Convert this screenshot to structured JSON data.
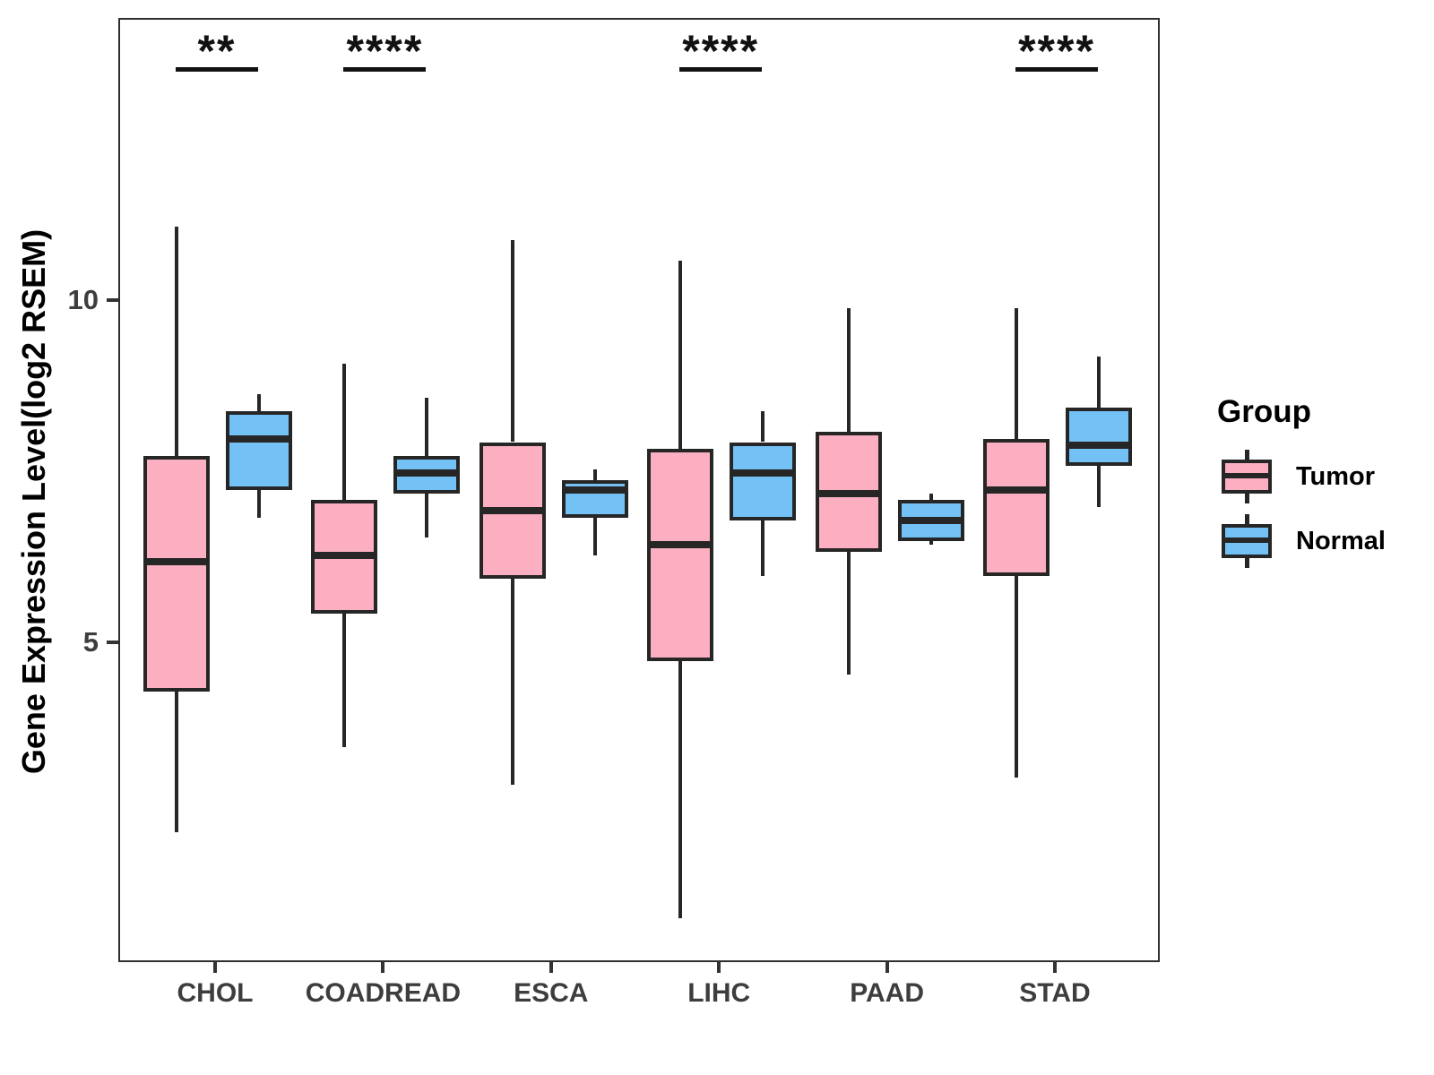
{
  "chart_data": {
    "type": "grouped_boxplot",
    "title": "",
    "xlabel": "",
    "ylabel": "Gene Expression Level(log2 RSEM)",
    "categories": [
      "CHOL",
      "COADREAD",
      "ESCA",
      "LIHC",
      "PAAD",
      "STAD"
    ],
    "y_ticks": [
      5,
      10
    ],
    "ylim": [
      0.38,
      14.12
    ],
    "grid": "off",
    "legend_position": "right",
    "legend_title": "Group",
    "groups": [
      {
        "name": "Tumor",
        "color": "#FBAFC0",
        "boxes": [
          {
            "category": "CHOL",
            "whisker_low": 2.25,
            "q1": 4.3,
            "median": 6.2,
            "q3": 7.75,
            "whisker_high": 11.1
          },
          {
            "category": "COADREAD",
            "whisker_low": 3.5,
            "q1": 5.45,
            "median": 6.3,
            "q3": 7.1,
            "whisker_high": 9.1
          },
          {
            "category": "ESCA",
            "whisker_low": 2.95,
            "q1": 5.95,
            "median": 6.95,
            "q3": 7.95,
            "whisker_high": 10.9
          },
          {
            "category": "LIHC",
            "whisker_low": 1.0,
            "q1": 4.75,
            "median": 6.45,
            "q3": 7.85,
            "whisker_high": 10.6
          },
          {
            "category": "PAAD",
            "whisker_low": 4.55,
            "q1": 6.35,
            "median": 7.2,
            "q3": 8.1,
            "whisker_high": 9.9
          },
          {
            "category": "STAD",
            "whisker_low": 3.05,
            "q1": 6.0,
            "median": 7.25,
            "q3": 8.0,
            "whisker_high": 9.9
          }
        ]
      },
      {
        "name": "Normal",
        "color": "#74C1F6",
        "boxes": [
          {
            "category": "CHOL",
            "whisker_low": 6.85,
            "q1": 7.25,
            "median": 8.0,
            "q3": 8.4,
            "whisker_high": 8.65
          },
          {
            "category": "COADREAD",
            "whisker_low": 6.55,
            "q1": 7.2,
            "median": 7.5,
            "q3": 7.75,
            "whisker_high": 8.6
          },
          {
            "category": "ESCA",
            "whisker_low": 6.3,
            "q1": 6.85,
            "median": 7.25,
            "q3": 7.4,
            "whisker_high": 7.55
          },
          {
            "category": "LIHC",
            "whisker_low": 6.0,
            "q1": 6.8,
            "median": 7.5,
            "q3": 7.95,
            "whisker_high": 8.4
          },
          {
            "category": "PAAD",
            "whisker_low": 6.45,
            "q1": 6.5,
            "median": 6.8,
            "q3": 7.1,
            "whisker_high": 7.2
          },
          {
            "category": "STAD",
            "whisker_low": 7.0,
            "q1": 7.6,
            "median": 7.9,
            "q3": 8.45,
            "whisker_high": 9.2
          }
        ]
      }
    ],
    "significance": [
      {
        "category": "CHOL",
        "label": "**"
      },
      {
        "category": "COADREAD",
        "label": "****"
      },
      {
        "category": "LIHC",
        "label": "****"
      },
      {
        "category": "STAD",
        "label": "****"
      }
    ]
  },
  "style": {
    "stroke_color": "#262626",
    "panel_border_color": "#2e2e2e",
    "tick_label_color": "#3d3d3d",
    "text_color": "#000000"
  }
}
